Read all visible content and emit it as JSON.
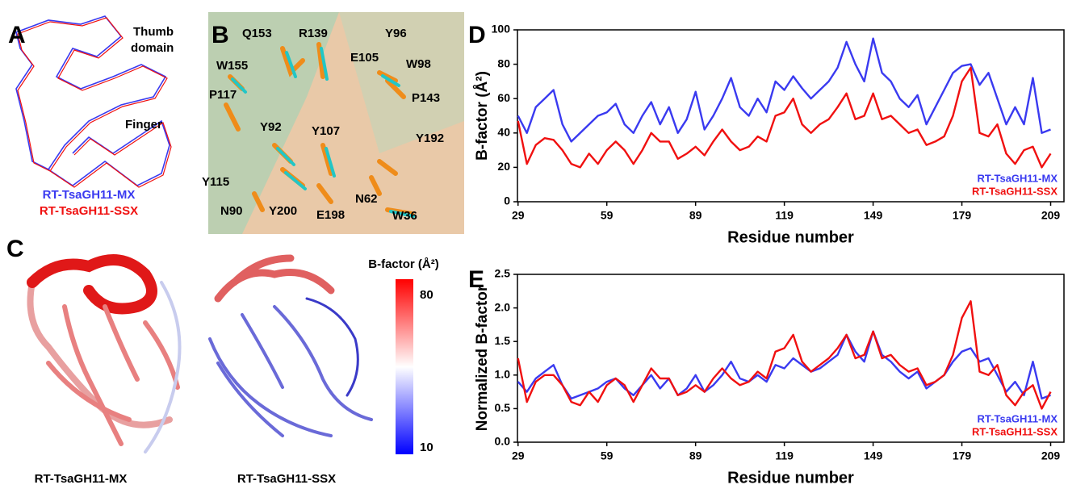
{
  "panels": {
    "A": {
      "letter": "A",
      "thumb": [
        "Thumb",
        "domain"
      ],
      "finger": "Finger",
      "legend": [
        "RT-TsaGH11-MX",
        "RT-TsaGH11-SSX"
      ]
    },
    "B": {
      "letter": "B",
      "residues": [
        "Q153",
        "R139",
        "Y96",
        "E105",
        "W98",
        "W155",
        "P117",
        "P143",
        "Y92",
        "Y107",
        "Y192",
        "Y115",
        "N90",
        "Y200",
        "E198",
        "N62",
        "W36"
      ]
    },
    "C": {
      "letter": "C",
      "colorbar_title": "B-factor (Å²)",
      "colorbar_ticks": [
        80,
        10
      ],
      "captions": [
        "RT-TsaGH11-MX",
        "RT-TsaGH11-SSX"
      ]
    }
  },
  "chart_data": [
    {
      "type": "line",
      "label": "D",
      "xlabel": "Residue number",
      "ylabel": "B-factor (Å²)",
      "x": [
        29,
        32,
        35,
        38,
        41,
        44,
        47,
        50,
        53,
        56,
        59,
        62,
        65,
        68,
        71,
        74,
        77,
        80,
        83,
        86,
        89,
        92,
        95,
        98,
        101,
        104,
        107,
        110,
        113,
        116,
        119,
        122,
        125,
        128,
        131,
        134,
        137,
        140,
        143,
        146,
        149,
        152,
        155,
        158,
        161,
        164,
        167,
        170,
        173,
        176,
        179,
        182,
        185,
        188,
        191,
        194,
        197,
        200,
        203,
        206,
        209
      ],
      "series": [
        {
          "name": "RT-TsaGH11-MX",
          "color": "#3a3af0",
          "values": [
            50,
            40,
            55,
            60,
            65,
            45,
            35,
            40,
            45,
            50,
            52,
            57,
            45,
            40,
            50,
            58,
            45,
            55,
            40,
            48,
            64,
            42,
            50,
            60,
            72,
            55,
            50,
            60,
            52,
            70,
            65,
            73,
            66,
            60,
            65,
            70,
            78,
            93,
            80,
            70,
            95,
            75,
            70,
            60,
            55,
            62,
            45,
            55,
            65,
            75,
            79,
            80,
            68,
            75,
            60,
            45,
            55,
            45,
            72,
            40,
            42
          ]
        },
        {
          "name": "RT-TsaGH11-SSX",
          "color": "#f01010",
          "values": [
            47,
            22,
            33,
            37,
            36,
            30,
            22,
            20,
            28,
            22,
            30,
            35,
            30,
            22,
            30,
            40,
            35,
            35,
            25,
            28,
            32,
            27,
            35,
            42,
            35,
            30,
            32,
            38,
            35,
            50,
            52,
            60,
            45,
            40,
            45,
            48,
            55,
            63,
            48,
            50,
            63,
            48,
            50,
            45,
            40,
            42,
            33,
            35,
            38,
            50,
            70,
            78,
            40,
            38,
            45,
            28,
            22,
            30,
            32,
            20,
            28
          ]
        }
      ],
      "xlim": [
        28.8,
        213.5
      ],
      "xticks": [
        29,
        59,
        89,
        119,
        149,
        179,
        209
      ],
      "ylim": [
        0,
        100
      ],
      "yticks": [
        0,
        20,
        40,
        60,
        80,
        100
      ],
      "grid": false,
      "legend": "lower right"
    },
    {
      "type": "line",
      "label": "E",
      "xlabel": "Residue number",
      "ylabel": "Normalized B-factor",
      "x": [
        29,
        32,
        35,
        38,
        41,
        44,
        47,
        50,
        53,
        56,
        59,
        62,
        65,
        68,
        71,
        74,
        77,
        80,
        83,
        86,
        89,
        92,
        95,
        98,
        101,
        104,
        107,
        110,
        113,
        116,
        119,
        122,
        125,
        128,
        131,
        134,
        137,
        140,
        143,
        146,
        149,
        152,
        155,
        158,
        161,
        164,
        167,
        170,
        173,
        176,
        179,
        182,
        185,
        188,
        191,
        194,
        197,
        200,
        203,
        206,
        209
      ],
      "series": [
        {
          "name": "RT-TsaGH11-MX",
          "color": "#3a3af0",
          "values": [
            0.9,
            0.75,
            0.95,
            1.05,
            1.15,
            0.85,
            0.65,
            0.7,
            0.75,
            0.8,
            0.9,
            0.95,
            0.8,
            0.7,
            0.85,
            1.0,
            0.8,
            0.95,
            0.7,
            0.8,
            1.0,
            0.75,
            0.85,
            1.0,
            1.2,
            0.95,
            0.9,
            1.0,
            0.9,
            1.15,
            1.1,
            1.25,
            1.15,
            1.05,
            1.1,
            1.2,
            1.3,
            1.6,
            1.35,
            1.2,
            1.65,
            1.3,
            1.2,
            1.05,
            0.95,
            1.05,
            0.8,
            0.9,
            1.0,
            1.2,
            1.35,
            1.4,
            1.2,
            1.25,
            1.0,
            0.75,
            0.9,
            0.7,
            1.2,
            0.65,
            0.7
          ]
        },
        {
          "name": "RT-TsaGH11-SSX",
          "color": "#f01010",
          "values": [
            1.25,
            0.6,
            0.9,
            1.0,
            1.0,
            0.85,
            0.6,
            0.55,
            0.75,
            0.6,
            0.85,
            0.95,
            0.85,
            0.6,
            0.85,
            1.1,
            0.95,
            0.95,
            0.7,
            0.75,
            0.85,
            0.75,
            0.95,
            1.1,
            0.95,
            0.85,
            0.9,
            1.05,
            0.95,
            1.35,
            1.4,
            1.6,
            1.2,
            1.05,
            1.15,
            1.25,
            1.4,
            1.6,
            1.25,
            1.3,
            1.65,
            1.25,
            1.3,
            1.15,
            1.05,
            1.1,
            0.85,
            0.9,
            1.0,
            1.3,
            1.85,
            2.1,
            1.05,
            1.0,
            1.15,
            0.7,
            0.55,
            0.75,
            0.85,
            0.5,
            0.75
          ]
        }
      ],
      "xlim": [
        28.8,
        213.5
      ],
      "xticks": [
        29,
        59,
        89,
        119,
        149,
        179,
        209
      ],
      "ylim": [
        0,
        2.5
      ],
      "yticks": [
        {
          "value": 0,
          "label": "0.0"
        },
        0.5,
        {
          "value": 1,
          "label": "1.0"
        },
        1.5,
        {
          "value": 2,
          "label": "2.0"
        },
        2.5
      ],
      "grid": false,
      "legend": "lower right"
    }
  ]
}
